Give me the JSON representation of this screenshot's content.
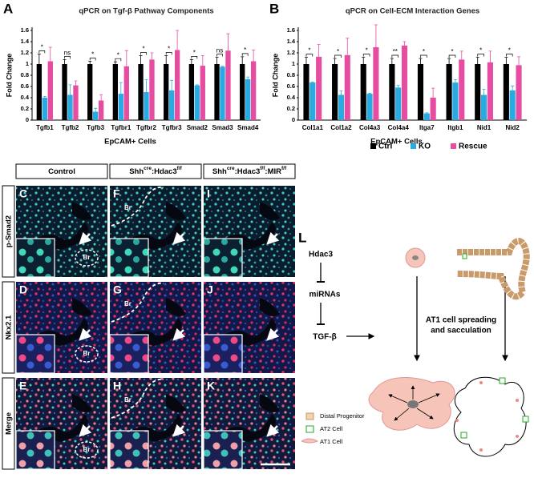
{
  "chart_data": [
    {
      "type": "bar",
      "panel": "A",
      "title": "qPCR on Tgf-β Pathway Components",
      "ylabel": "Fold Change",
      "xlabel": "EpCAM+ Cells",
      "categories": [
        "Tgfb1",
        "Tgfb2",
        "Tgfb3",
        "Tgfbr1",
        "Tgfbr2",
        "Tgfbr3",
        "Smad2",
        "Smad3",
        "Smad4"
      ],
      "ylim": [
        0,
        1.6
      ],
      "yticks": [
        0,
        0.2,
        0.4,
        0.6,
        0.8,
        1,
        1.2,
        1.4,
        1.6
      ],
      "legend": false,
      "series": [
        {
          "color": "#000000",
          "values": [
            1,
            1,
            1,
            1,
            1,
            1,
            1,
            1,
            1
          ],
          "errors": [
            0.18,
            0.08,
            0.05,
            0.04,
            0.15,
            0.15,
            0.08,
            0.12,
            0.13
          ]
        },
        {
          "color": "#29abe2",
          "values": [
            0.4,
            0.45,
            0.15,
            0.47,
            0.5,
            0.53,
            0.62,
            0.95,
            0.73
          ],
          "errors": [
            0.02,
            0.18,
            0.06,
            0.2,
            0.22,
            0.18,
            0.01,
            0.01,
            0.04
          ]
        },
        {
          "color": "#e64da0",
          "values": [
            1.05,
            0.62,
            0.35,
            0.96,
            1.08,
            1.25,
            0.97,
            1.24,
            1.05
          ],
          "errors": [
            0.25,
            0.08,
            0.1,
            0.28,
            0.12,
            0.35,
            0.18,
            0.3,
            0.2
          ]
        }
      ],
      "significance": [
        "*",
        "ns",
        "*",
        "*",
        "*",
        "*",
        "*",
        "ns",
        "*"
      ]
    },
    {
      "type": "bar",
      "panel": "B",
      "title": "qPCR on Cell-ECM Interaction Genes",
      "ylabel": "Fold Change",
      "xlabel": "EpCAM+ Cells",
      "categories": [
        "Col1a1",
        "Col1a2",
        "Col4a3",
        "Col4a4",
        "Itga7",
        "Itgb1",
        "Nid1",
        "Nid2"
      ],
      "ylim": [
        0,
        1.6
      ],
      "yticks": [
        0,
        0.2,
        0.4,
        0.6,
        0.8,
        1,
        1.2,
        1.4,
        1.6
      ],
      "legend": true,
      "series": [
        {
          "name": "Ctrl",
          "color": "#000000",
          "values": [
            1,
            1,
            1,
            1,
            1,
            1,
            1,
            1
          ],
          "errors": [
            0.12,
            0.1,
            0.12,
            0.1,
            0.1,
            0.1,
            0.12,
            0.12
          ]
        },
        {
          "name": "KO",
          "color": "#29abe2",
          "values": [
            0.67,
            0.45,
            0.47,
            0.58,
            0.12,
            0.67,
            0.45,
            0.53
          ],
          "errors": [
            0.01,
            0.07,
            0.01,
            0.04,
            0.01,
            0.05,
            0.1,
            0.08
          ]
        },
        {
          "name": "Rescue",
          "color": "#e64da0",
          "values": [
            1.13,
            1.16,
            1.3,
            1.33,
            0.4,
            1.08,
            1.03,
            0.98
          ],
          "errors": [
            0.22,
            0.3,
            0.4,
            0.07,
            0.17,
            0.15,
            0.2,
            0.15
          ]
        }
      ],
      "significance": [
        "*",
        "*",
        "*",
        "**",
        "*",
        "*",
        "*",
        "*"
      ]
    }
  ],
  "micrographs": {
    "columns": [
      [
        [
          "Control",
          ""
        ]
      ],
      [
        [
          "Shh",
          "cre"
        ],
        [
          ":Hdac3",
          "f/f"
        ]
      ],
      [
        [
          "Shh",
          "cre"
        ],
        [
          ":Hdac3",
          "f/f"
        ],
        [
          ":MIR",
          "f/f"
        ]
      ]
    ],
    "rows": [
      "p-Smad2",
      "Nkx2.1",
      "Merge"
    ],
    "panels": [
      [
        "C",
        "F",
        "I"
      ],
      [
        "D",
        "G",
        "J"
      ],
      [
        "E",
        "H",
        "K"
      ]
    ],
    "br": "Br"
  },
  "diagram": {
    "letter": "L",
    "hdac3": "Hdac3",
    "mirnas": "miRNAs",
    "tgfb": "TGF-β",
    "process": [
      "AT1 cell spreading",
      "and sacculation"
    ],
    "legend": [
      "Distal Progenitor",
      "AT2 Cell",
      "AT1 Cell"
    ]
  }
}
